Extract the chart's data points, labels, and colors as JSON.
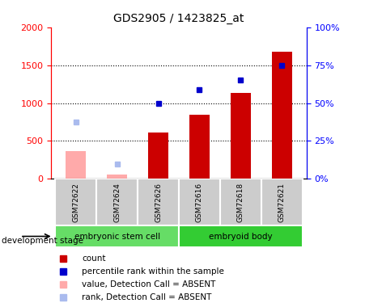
{
  "title": "GDS2905 / 1423825_at",
  "samples": [
    "GSM72622",
    "GSM72624",
    "GSM72626",
    "GSM72616",
    "GSM72618",
    "GSM72621"
  ],
  "bar_values": [
    370,
    55,
    610,
    850,
    1130,
    1680
  ],
  "rank_values": [
    37.5,
    10.0,
    50.0,
    59.0,
    65.0,
    75.0
  ],
  "absent": [
    true,
    true,
    false,
    false,
    false,
    false
  ],
  "groups": [
    {
      "label": "embryonic stem cell",
      "start": 0,
      "end": 3,
      "color": "#66dd66"
    },
    {
      "label": "embryoid body",
      "start": 3,
      "end": 6,
      "color": "#33cc33"
    }
  ],
  "bar_color_present": "#cc0000",
  "bar_color_absent": "#ffaaaa",
  "rank_color_present": "#0000cc",
  "rank_color_absent": "#aabbee",
  "ylim_left": [
    0,
    2000
  ],
  "ylim_right": [
    0,
    100
  ],
  "yticks_left": [
    0,
    500,
    1000,
    1500,
    2000
  ],
  "yticks_right": [
    0,
    25,
    50,
    75,
    100
  ],
  "yticklabels_right": [
    "0%",
    "25%",
    "50%",
    "75%",
    "100%"
  ],
  "bar_width": 0.5,
  "dev_stage_label": "development stage",
  "legend_items": [
    {
      "label": "count",
      "color": "#cc0000"
    },
    {
      "label": "percentile rank within the sample",
      "color": "#0000cc"
    },
    {
      "label": "value, Detection Call = ABSENT",
      "color": "#ffaaaa"
    },
    {
      "label": "rank, Detection Call = ABSENT",
      "color": "#aabbee"
    }
  ]
}
